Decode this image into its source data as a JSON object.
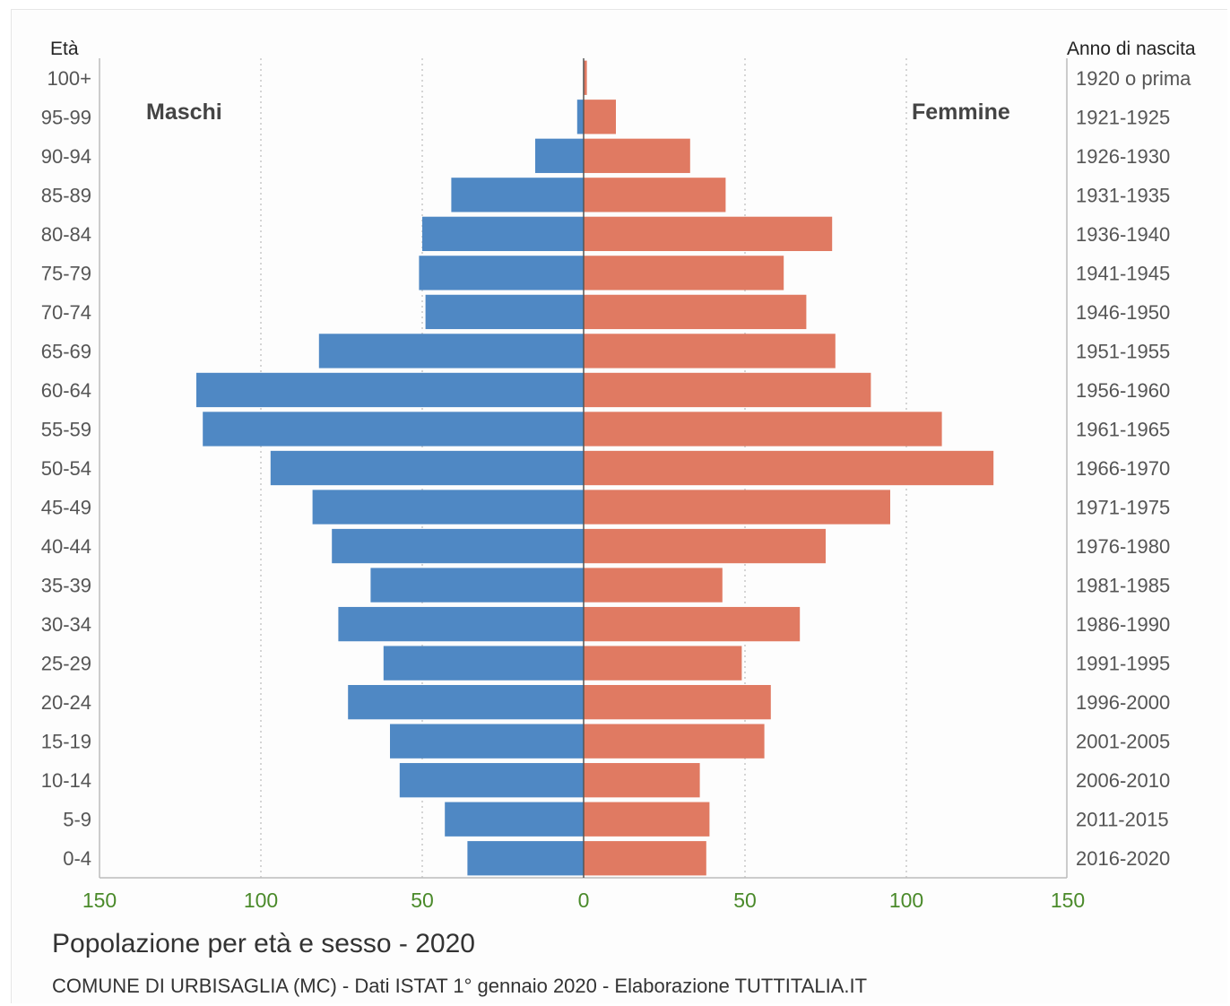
{
  "chart_data": {
    "type": "bar",
    "orientation": "horizontal-population-pyramid",
    "title": "Popolazione per età e sesso - 2020",
    "subtitle": "COMUNE DI URBISAGLIA (MC) - Dati ISTAT 1° gennaio 2020 - Elaborazione TUTTITALIA.IT",
    "left_axis_title": "Età",
    "right_axis_title": "Anno di nascita",
    "age_groups": [
      "100+",
      "95-99",
      "90-94",
      "85-89",
      "80-84",
      "75-79",
      "70-74",
      "65-69",
      "60-64",
      "55-59",
      "50-54",
      "45-49",
      "40-44",
      "35-39",
      "30-34",
      "25-29",
      "20-24",
      "15-19",
      "10-14",
      "5-9",
      "0-4"
    ],
    "birth_years": [
      "1920 o prima",
      "1921-1925",
      "1926-1930",
      "1931-1935",
      "1936-1940",
      "1941-1945",
      "1946-1950",
      "1951-1955",
      "1956-1960",
      "1961-1965",
      "1966-1970",
      "1971-1975",
      "1976-1980",
      "1981-1985",
      "1986-1990",
      "1991-1995",
      "1996-2000",
      "2001-2005",
      "2006-2010",
      "2011-2015",
      "2016-2020"
    ],
    "series": [
      {
        "name": "Maschi",
        "color": "#4f88c4",
        "values": [
          0,
          2,
          15,
          41,
          50,
          51,
          49,
          82,
          120,
          118,
          97,
          84,
          78,
          66,
          76,
          62,
          73,
          60,
          57,
          43,
          36
        ]
      },
      {
        "name": "Femmine",
        "color": "#e07a62",
        "values": [
          1,
          10,
          33,
          44,
          77,
          62,
          69,
          78,
          89,
          111,
          127,
          95,
          75,
          43,
          67,
          49,
          58,
          56,
          36,
          39,
          38
        ]
      }
    ],
    "x_ticks": [
      "150",
      "100",
      "50",
      "0",
      "50",
      "100",
      "150"
    ],
    "xlim": [
      -150,
      150
    ],
    "grid": "vertical dotted"
  }
}
